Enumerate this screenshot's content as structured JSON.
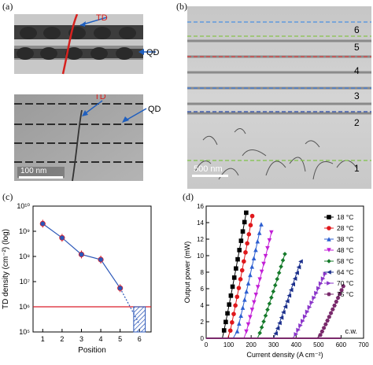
{
  "panels": {
    "a": {
      "label": "(a)",
      "schematic": {
        "td_label": "TD",
        "qd_label": "QD"
      },
      "tem": {
        "td_label": "TD",
        "qd_label": "QD",
        "scale_bar": "100 nm"
      }
    },
    "b": {
      "label": "(b)",
      "scale_bar": "500 nm",
      "layer_labels": [
        "6",
        "5",
        "4",
        "3",
        "2",
        "1"
      ]
    },
    "c": {
      "label": "(c)"
    },
    "d": {
      "label": "(d)"
    }
  },
  "colors": {
    "schematic_band_dark": "#3c3c3c",
    "schematic_band_mid": "#8c8c8c",
    "td_red": "#d6221f",
    "qd_blue": "#1f5fbf",
    "panel_c_marker": "#2b57b8",
    "panel_c_line": "#d91f2b"
  },
  "chart_data": [
    {
      "type": "scatter",
      "panel": "c",
      "xlabel": "Position",
      "ylabel": "TD density (cm⁻²) (log)",
      "scale_y": "log",
      "xlim": [
        0.5,
        6.6
      ],
      "ylim": [
        100000,
        10000000000
      ],
      "x_ticks": [
        1,
        2,
        3,
        4,
        5,
        6
      ],
      "y_ticks": [
        {
          "value": 100000,
          "label": "10⁵"
        },
        {
          "value": 1000000,
          "label": "10⁶"
        },
        {
          "value": 10000000,
          "label": "10⁷"
        },
        {
          "value": 100000000,
          "label": "10⁸"
        },
        {
          "value": 1000000000,
          "label": "10⁹"
        },
        {
          "value": 10000000000,
          "label": "10¹⁰"
        }
      ],
      "series": [
        {
          "x": [
            1,
            2,
            3,
            4,
            5
          ],
          "y": [
            2000000000,
            550000000,
            120000000,
            75000000,
            5500000
          ]
        }
      ],
      "extrapolation_to": [
        6,
        200000
      ],
      "reference_line_y": 1000000,
      "grid": false
    },
    {
      "type": "line",
      "panel": "d",
      "xlabel": "Current density (A cm⁻²)",
      "ylabel": "Output power (mW)",
      "xlim": [
        0,
        700
      ],
      "ylim": [
        0,
        16
      ],
      "x_ticks": [
        0,
        100,
        200,
        300,
        400,
        500,
        600,
        700
      ],
      "y_ticks": [
        0,
        2,
        4,
        6,
        8,
        10,
        12,
        14,
        16
      ],
      "legend_position": "right",
      "annotation": "c.w.",
      "series": [
        {
          "name": "18 °C",
          "color": "#000000",
          "marker": "square",
          "threshold": 72,
          "end_x": 178,
          "end_y": 15.2
        },
        {
          "name": "28 °C",
          "color": "#e0181c",
          "marker": "circle",
          "threshold": 100,
          "end_x": 205,
          "end_y": 14.8
        },
        {
          "name": "38 °C",
          "color": "#2d5fd1",
          "marker": "triangle-up",
          "threshold": 130,
          "end_x": 245,
          "end_y": 13.8
        },
        {
          "name": "48 °C",
          "color": "#c21fd6",
          "marker": "triangle-down",
          "threshold": 170,
          "end_x": 290,
          "end_y": 12.8
        },
        {
          "name": "58 °C",
          "color": "#157a2a",
          "marker": "diamond",
          "threshold": 230,
          "end_x": 350,
          "end_y": 10.2
        },
        {
          "name": "64 °C",
          "color": "#1b2f8c",
          "marker": "triangle-left",
          "threshold": 300,
          "end_x": 420,
          "end_y": 9.3
        },
        {
          "name": "70 °C",
          "color": "#8a35c9",
          "marker": "triangle-right",
          "threshold": 390,
          "end_x": 530,
          "end_y": 7.8
        },
        {
          "name": "75 °C",
          "color": "#7a2a6c",
          "marker": "hexagon",
          "threshold": 500,
          "end_x": 610,
          "end_y": 6.3
        }
      ]
    }
  ]
}
